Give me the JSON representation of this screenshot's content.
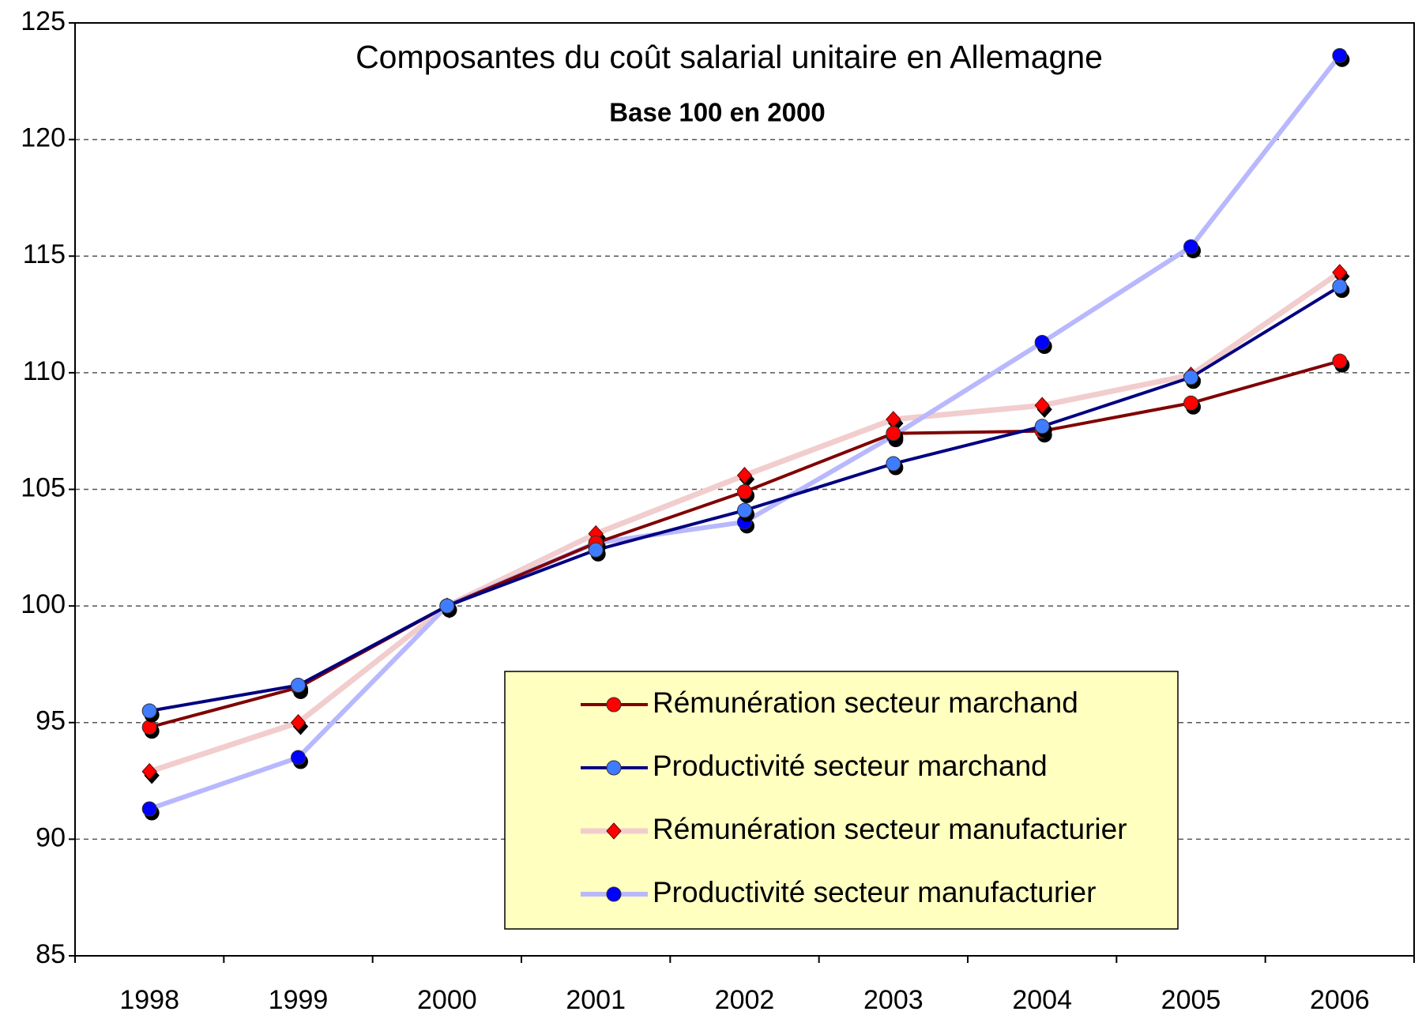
{
  "chart_data": {
    "type": "line",
    "title": "Composantes du coût salarial unitaire en Allemagne",
    "subtitle": "Base 100 en 2000",
    "categories": [
      "1998",
      "1999",
      "2000",
      "2001",
      "2002",
      "2003",
      "2004",
      "2005",
      "2006"
    ],
    "series": [
      {
        "name": "Rémunération secteur marchand",
        "color": "#800000",
        "marker_color": "#ff0000",
        "marker": "circle",
        "values": [
          94.8,
          96.5,
          100,
          102.7,
          104.9,
          107.4,
          107.5,
          108.7,
          110.5
        ]
      },
      {
        "name": "Productivité secteur marchand",
        "color": "#000080",
        "marker_color": "#3f7bff",
        "marker": "circle",
        "values": [
          95.5,
          96.6,
          100,
          102.4,
          104.1,
          106.1,
          107.7,
          109.8,
          113.7
        ]
      },
      {
        "name": "Rémunération secteur manufacturier",
        "color": "#f2cdcd",
        "marker_color": "#ff0000",
        "marker": "diamond",
        "values": [
          92.9,
          95.0,
          100,
          103.1,
          105.6,
          108.0,
          108.6,
          109.9,
          114.3
        ]
      },
      {
        "name": "Productivité secteur manufacturier",
        "color": "#b8b8ff",
        "marker_color": "#0000ff",
        "marker": "circle",
        "values": [
          91.3,
          93.5,
          100,
          102.7,
          103.6,
          107.3,
          111.3,
          115.4,
          123.6
        ]
      }
    ],
    "ylim": [
      85,
      125
    ],
    "yticks": [
      85,
      90,
      95,
      100,
      105,
      110,
      115,
      120,
      125
    ],
    "grid": true,
    "legend_background": "#ffffc0"
  }
}
